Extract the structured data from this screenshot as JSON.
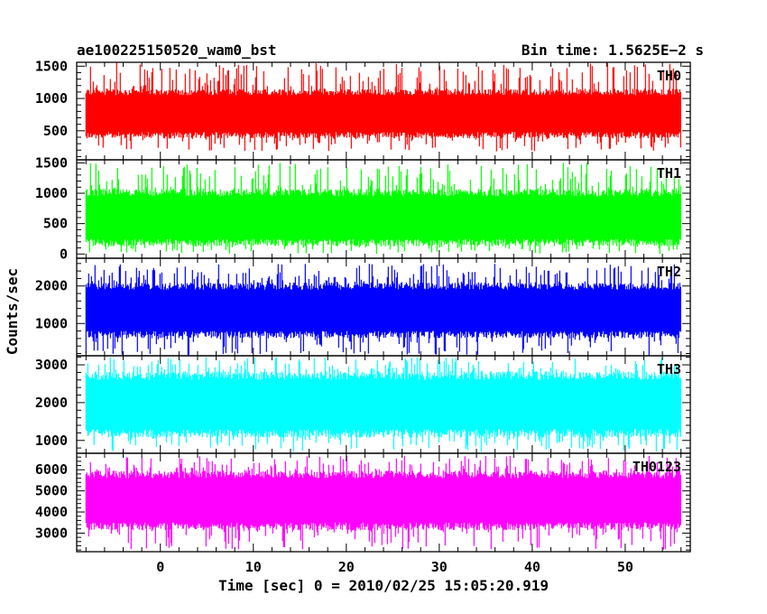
{
  "header": {
    "title": "ae100225150520_wam0_bst",
    "bin_time": "Bin time: 1.5625E−2 s"
  },
  "axes": {
    "xlabel": "Time [sec] 0 = 2010/02/25 15:05:20.919",
    "ylabel": "Counts/sec",
    "xlim": [
      -9,
      57
    ],
    "xticks_major": [
      0,
      10,
      20,
      30,
      40,
      50
    ],
    "xtick_minor_step": 2
  },
  "chart_data": [
    {
      "type": "line",
      "name": "TH0",
      "color": "#ff0000",
      "ylim": [
        50,
        1560
      ],
      "yticks": [
        500,
        1000,
        1500
      ],
      "ytick_minor_step": 100,
      "x_range": [
        -8,
        56
      ],
      "typical_range": [
        480,
        1050
      ],
      "min": 180,
      "max": 1560
    },
    {
      "type": "line",
      "name": "TH1",
      "color": "#00ff00",
      "ylim": [
        -70,
        1550
      ],
      "yticks": [
        0,
        500,
        1000,
        1500
      ],
      "ytick_minor_step": 100,
      "x_range": [
        -8,
        56
      ],
      "typical_range": [
        250,
        950
      ],
      "min": 0,
      "max": 1500
    },
    {
      "type": "line",
      "name": "TH2",
      "color": "#0000ff",
      "ylim": [
        140,
        2740
      ],
      "yticks": [
        1000,
        2000
      ],
      "ytick_minor_step": 200,
      "x_range": [
        -8,
        56
      ],
      "typical_range": [
        800,
        1900
      ],
      "min": 150,
      "max": 2600
    },
    {
      "type": "line",
      "name": "TH3",
      "color": "#00ffff",
      "ylim": [
        660,
        3240
      ],
      "yticks": [
        1000,
        2000,
        3000
      ],
      "ytick_minor_step": 200,
      "x_range": [
        -8,
        56
      ],
      "typical_range": [
        1300,
        2600
      ],
      "min": 700,
      "max": 3200
    },
    {
      "type": "line",
      "name": "TH0123",
      "color": "#ff00ff",
      "ylim": [
        2120,
        6780
      ],
      "yticks": [
        3000,
        4000,
        5000,
        6000
      ],
      "ytick_minor_step": 200,
      "x_range": [
        -8,
        56
      ],
      "typical_range": [
        3500,
        5600
      ],
      "min": 2200,
      "max": 6700
    }
  ]
}
